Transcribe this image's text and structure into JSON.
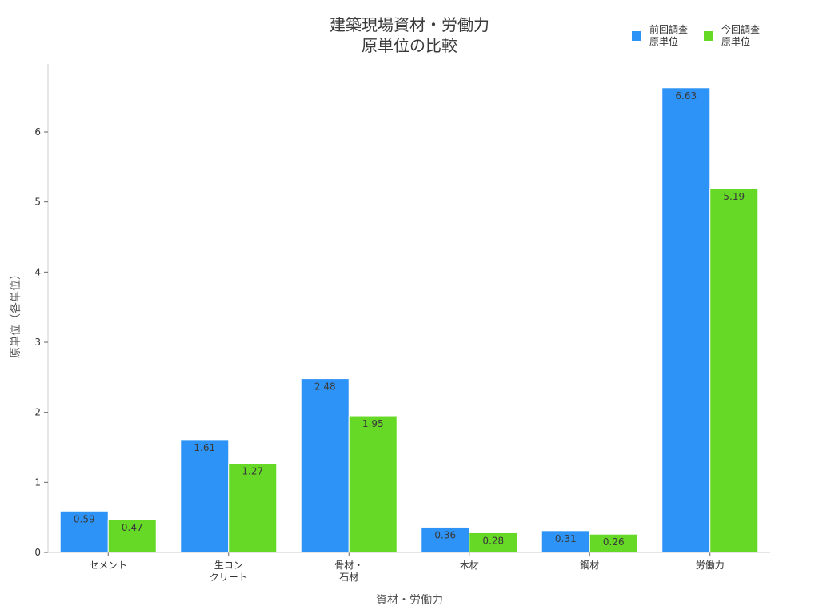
{
  "chart_data": {
    "type": "bar",
    "title": "建築現場資材・労働力\n原単位の比較",
    "title_lines": [
      "建築現場資材・労働力",
      "原単位の比較"
    ],
    "xlabel": "資材・労働力",
    "ylabel": "原単位（各単位）",
    "categories": [
      "セメント",
      "生コン\nクリート",
      "骨材・\n石材",
      "木材",
      "鋼材",
      "労働力"
    ],
    "category_lines": [
      [
        "セメント"
      ],
      [
        "生コン",
        "クリート"
      ],
      [
        "骨材・",
        "石材"
      ],
      [
        "木材"
      ],
      [
        "鋼材"
      ],
      [
        "労働力"
      ]
    ],
    "series": [
      {
        "name": "前回調査\n原単位",
        "name_lines": [
          "前回調査",
          "原単位"
        ],
        "color": "#2e93f7",
        "values": [
          0.59,
          1.61,
          2.48,
          0.36,
          0.31,
          6.63
        ]
      },
      {
        "name": "今回調査\n原単位",
        "name_lines": [
          "今回調査",
          "原単位"
        ],
        "color": "#66d926",
        "values": [
          0.47,
          1.27,
          1.95,
          0.28,
          0.26,
          5.19
        ]
      }
    ],
    "yticks": [
      0,
      1,
      2,
      3,
      4,
      5,
      6
    ],
    "ylim": [
      0,
      6.97
    ],
    "grid": false,
    "legend_position": "top-right",
    "data_labels": true
  }
}
